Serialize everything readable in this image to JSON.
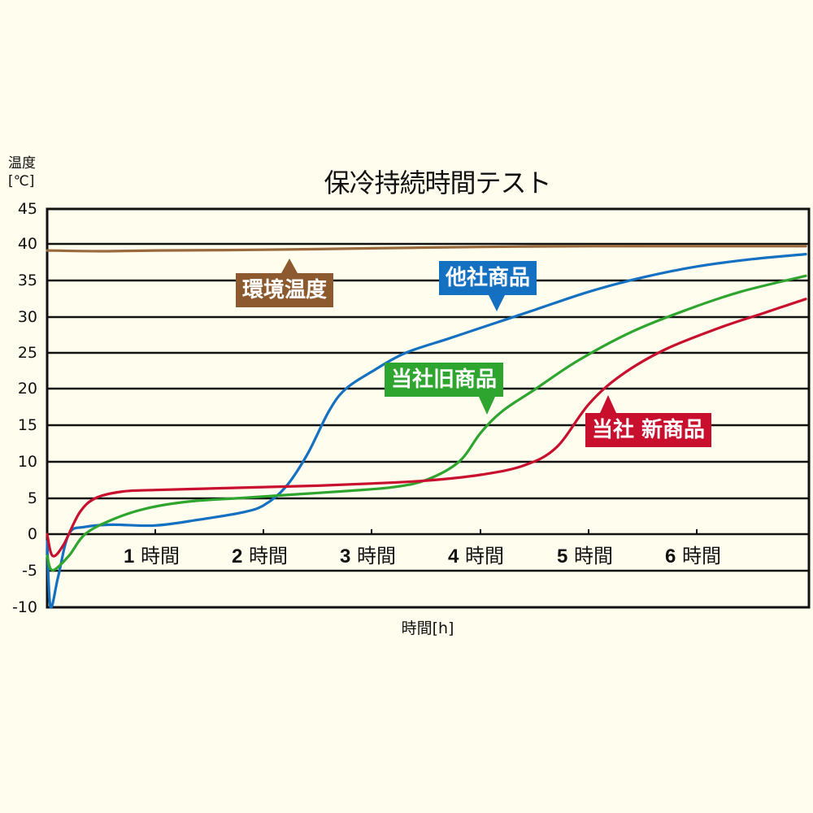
{
  "chart_data": {
    "type": "line",
    "title": "保冷持続時間テスト",
    "xlabel": "時間[h]",
    "ylabel": "温度 [℃]",
    "xlim": [
      0,
      7
    ],
    "ylim": [
      -10,
      45
    ],
    "yticks": [
      45,
      40,
      35,
      30,
      25,
      20,
      15,
      10,
      5,
      0,
      -5,
      -10
    ],
    "xticks": [
      1,
      2,
      3,
      4,
      5,
      6
    ],
    "xtick_labels": [
      "1 時間",
      "2 時間",
      "3 時間",
      "4 時間",
      "5 時間",
      "6 時間"
    ],
    "grid": true,
    "legend": "callouts",
    "series": [
      {
        "name": "環境温度",
        "color": "#9B6A3C",
        "x": [
          0,
          0.5,
          1,
          2,
          3,
          4,
          5,
          6,
          7
        ],
        "y": [
          39.2,
          39.1,
          39.2,
          39.3,
          39.5,
          39.7,
          39.8,
          39.8,
          39.8
        ]
      },
      {
        "name": "他社商品",
        "color": "#1470C0",
        "x": [
          0,
          0.03,
          0.1,
          0.2,
          0.35,
          0.6,
          1.0,
          1.4,
          1.8,
          2.0,
          2.2,
          2.4,
          2.6,
          2.75,
          3.0,
          3.3,
          3.7,
          4.1,
          4.5,
          5.0,
          5.5,
          6.0,
          6.5,
          7.0
        ],
        "y": [
          -1,
          -10,
          -6,
          0,
          1,
          1.3,
          1.2,
          2,
          3,
          4,
          6.5,
          11,
          17,
          20,
          22.5,
          25,
          27,
          29,
          31,
          33.5,
          35.5,
          37,
          38,
          38.7
        ]
      },
      {
        "name": "当社旧商品",
        "color": "#2EA52E",
        "x": [
          0,
          0.05,
          0.2,
          0.35,
          0.6,
          0.9,
          1.3,
          1.8,
          2.3,
          2.8,
          3.2,
          3.5,
          3.8,
          4.0,
          4.2,
          4.5,
          4.9,
          5.4,
          5.9,
          6.4,
          7.0
        ],
        "y": [
          -3,
          -5,
          -3,
          0,
          2,
          3.5,
          4.5,
          5,
          5.5,
          6,
          6.5,
          7.5,
          10,
          14,
          17,
          20,
          24,
          28,
          31,
          33.5,
          35.7
        ]
      },
      {
        "name": "当社 新商品",
        "color": "#C8102E",
        "x": [
          0,
          0.05,
          0.15,
          0.3,
          0.45,
          0.7,
          1.0,
          1.5,
          2.0,
          2.5,
          3.0,
          3.5,
          4.0,
          4.4,
          4.7,
          5.0,
          5.3,
          5.7,
          6.2,
          6.6,
          7.0
        ],
        "y": [
          0,
          -3,
          -1.5,
          3,
          5,
          5.9,
          6.1,
          6.3,
          6.5,
          6.7,
          7,
          7.4,
          8.2,
          9.5,
          12,
          18,
          22,
          25.5,
          28.5,
          30.5,
          32.5
        ]
      }
    ],
    "annotations": [
      {
        "text": "環境温度",
        "series": "環境温度"
      },
      {
        "text": "他社商品",
        "series": "他社商品"
      },
      {
        "text": "当社旧商品",
        "series": "当社旧商品"
      },
      {
        "text": "当社 新商品",
        "series": "当社 新商品"
      }
    ]
  },
  "labels": {
    "title": "保冷持続時間テスト",
    "ylabel_line1": "温度",
    "ylabel_line2": "[℃]",
    "xlabel": "時間[h]",
    "yticks": [
      "45",
      "40",
      "35",
      "30",
      "25",
      "20",
      "15",
      "10",
      "5",
      "0",
      "-5",
      "-10"
    ],
    "xticks": [
      {
        "num": "1",
        "unit": "時間"
      },
      {
        "num": "2",
        "unit": "時間"
      },
      {
        "num": "3",
        "unit": "時間"
      },
      {
        "num": "4",
        "unit": "時間"
      },
      {
        "num": "5",
        "unit": "時間"
      },
      {
        "num": "6",
        "unit": "時間"
      }
    ],
    "callouts": {
      "ambient": "環境温度",
      "competitor": "他社商品",
      "old": "当社旧商品",
      "new": "当社 新商品"
    }
  },
  "colors": {
    "background": "#FFFDEE",
    "ambient": "#8C5A2E",
    "competitor": "#1470C0",
    "old": "#2EA52E",
    "new": "#C8102E"
  }
}
